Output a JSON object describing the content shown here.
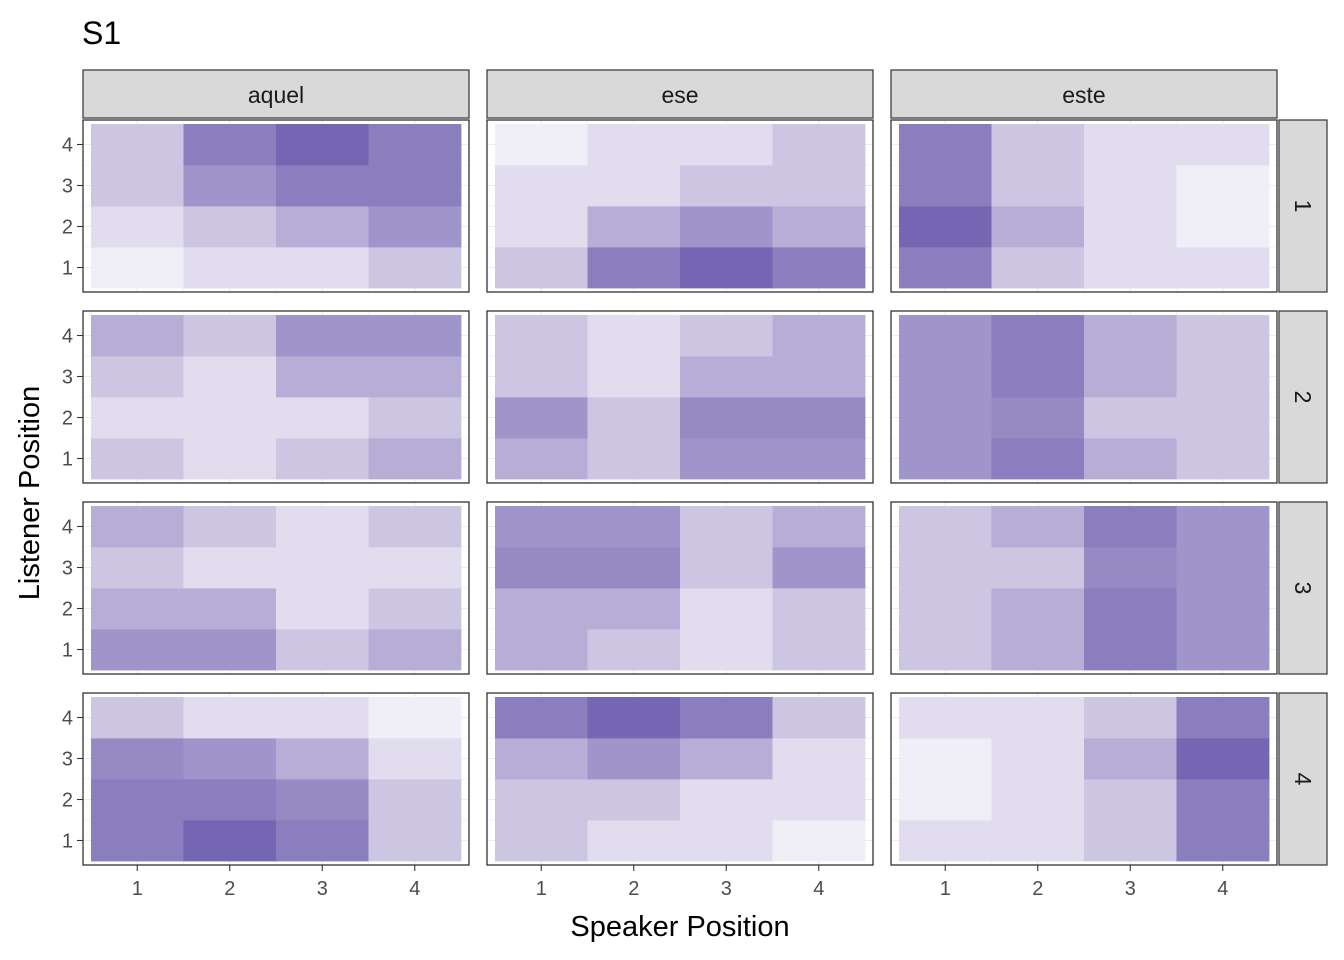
{
  "chart_data": {
    "type": "heatmap",
    "title": "S1",
    "xlabel": "Speaker Position",
    "ylabel": "Listener Position",
    "x_ticks": [
      "1",
      "2",
      "3",
      "4"
    ],
    "y_ticks": [
      "1",
      "2",
      "3",
      "4"
    ],
    "columns": [
      "aquel",
      "ese",
      "este"
    ],
    "rows": [
      "1",
      "2",
      "3",
      "4"
    ],
    "legend": "none",
    "grid": true,
    "colors": {
      "low": "#f7f5fb",
      "high": "#7466b2",
      "strip_fill": "#d9d9d9",
      "panel_border": "#333333",
      "grid": "#ebebeb"
    },
    "scale": [
      0,
      1
    ],
    "note_values": "values are fill intensities; cells indexed [listener 1..4][speaker 1..4]",
    "panels": [
      {
        "column": "aquel",
        "row": "1",
        "cells": [
          [
            0.05,
            0.17,
            0.17,
            0.33
          ],
          [
            0.17,
            0.33,
            0.5,
            0.67
          ],
          [
            0.33,
            0.67,
            0.83,
            0.83
          ],
          [
            0.33,
            0.83,
            1.0,
            0.83
          ]
        ]
      },
      {
        "column": "ese",
        "row": "1",
        "cells": [
          [
            0.33,
            0.83,
            1.0,
            0.83
          ],
          [
            0.17,
            0.5,
            0.67,
            0.5
          ],
          [
            0.17,
            0.17,
            0.33,
            0.33
          ],
          [
            0.05,
            0.17,
            0.17,
            0.33
          ]
        ]
      },
      {
        "column": "este",
        "row": "1",
        "cells": [
          [
            0.83,
            0.33,
            0.17,
            0.17
          ],
          [
            1.0,
            0.5,
            0.17,
            0.05
          ],
          [
            0.83,
            0.33,
            0.17,
            0.05
          ],
          [
            0.83,
            0.33,
            0.17,
            0.17
          ]
        ]
      },
      {
        "column": "aquel",
        "row": "2",
        "cells": [
          [
            0.33,
            0.17,
            0.33,
            0.5
          ],
          [
            0.17,
            0.17,
            0.17,
            0.33
          ],
          [
            0.33,
            0.17,
            0.5,
            0.5
          ],
          [
            0.5,
            0.33,
            0.67,
            0.67
          ]
        ]
      },
      {
        "column": "ese",
        "row": "2",
        "cells": [
          [
            0.5,
            0.33,
            0.67,
            0.67
          ],
          [
            0.67,
            0.33,
            0.75,
            0.75
          ],
          [
            0.33,
            0.17,
            0.5,
            0.5
          ],
          [
            0.33,
            0.17,
            0.33,
            0.5
          ]
        ]
      },
      {
        "column": "este",
        "row": "2",
        "cells": [
          [
            0.67,
            0.83,
            0.5,
            0.33
          ],
          [
            0.67,
            0.75,
            0.33,
            0.33
          ],
          [
            0.67,
            0.83,
            0.5,
            0.33
          ],
          [
            0.67,
            0.83,
            0.5,
            0.33
          ]
        ]
      },
      {
        "column": "aquel",
        "row": "3",
        "cells": [
          [
            0.67,
            0.67,
            0.33,
            0.5
          ],
          [
            0.5,
            0.5,
            0.17,
            0.33
          ],
          [
            0.33,
            0.17,
            0.17,
            0.17
          ],
          [
            0.5,
            0.33,
            0.17,
            0.33
          ]
        ]
      },
      {
        "column": "ese",
        "row": "3",
        "cells": [
          [
            0.5,
            0.33,
            0.17,
            0.33
          ],
          [
            0.5,
            0.5,
            0.17,
            0.33
          ],
          [
            0.75,
            0.75,
            0.33,
            0.67
          ],
          [
            0.67,
            0.67,
            0.33,
            0.5
          ]
        ]
      },
      {
        "column": "este",
        "row": "3",
        "cells": [
          [
            0.33,
            0.5,
            0.83,
            0.67
          ],
          [
            0.33,
            0.5,
            0.83,
            0.67
          ],
          [
            0.33,
            0.33,
            0.75,
            0.67
          ],
          [
            0.33,
            0.5,
            0.83,
            0.67
          ]
        ]
      },
      {
        "column": "aquel",
        "row": "4",
        "cells": [
          [
            0.83,
            1.0,
            0.83,
            0.33
          ],
          [
            0.83,
            0.83,
            0.75,
            0.33
          ],
          [
            0.75,
            0.67,
            0.5,
            0.17
          ],
          [
            0.33,
            0.17,
            0.17,
            0.05
          ]
        ]
      },
      {
        "column": "ese",
        "row": "4",
        "cells": [
          [
            0.33,
            0.17,
            0.17,
            0.05
          ],
          [
            0.33,
            0.33,
            0.17,
            0.17
          ],
          [
            0.5,
            0.67,
            0.5,
            0.17
          ],
          [
            0.83,
            1.0,
            0.83,
            0.33
          ]
        ]
      },
      {
        "column": "este",
        "row": "4",
        "cells": [
          [
            0.17,
            0.17,
            0.33,
            0.83
          ],
          [
            0.05,
            0.17,
            0.33,
            0.83
          ],
          [
            0.05,
            0.17,
            0.5,
            1.0
          ],
          [
            0.17,
            0.17,
            0.33,
            0.83
          ]
        ]
      }
    ]
  }
}
